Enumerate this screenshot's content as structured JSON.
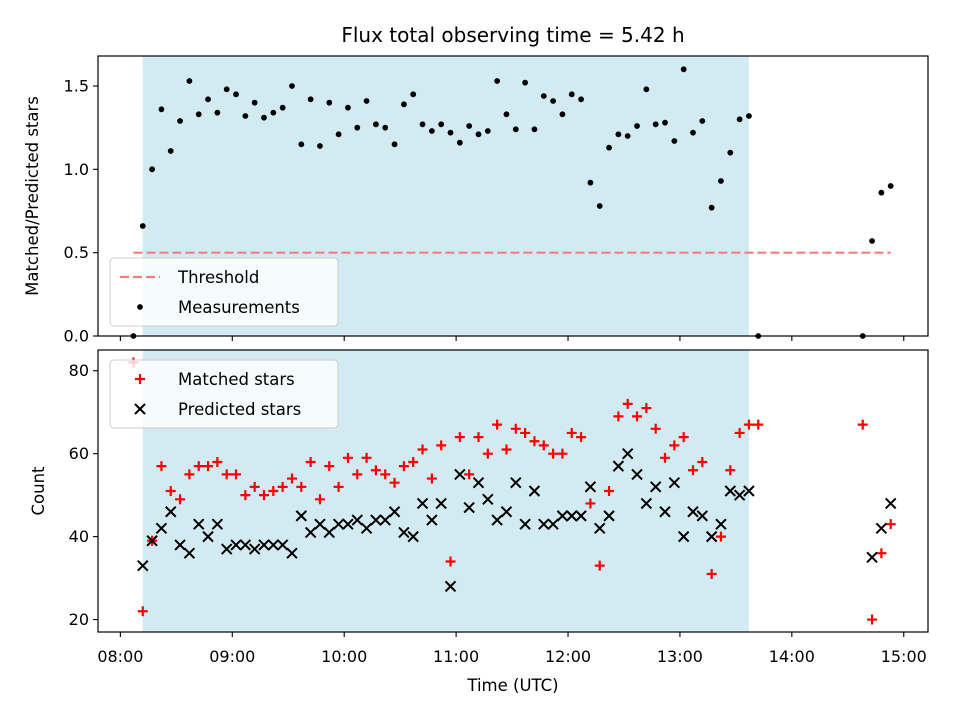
{
  "chart_data": {
    "title": "Flux total observing time = 5.42 h",
    "shared_x": {
      "xlabel": "Time (UTC)",
      "xlim": [
        "07:48",
        "15:13"
      ],
      "ticks": [
        "08:00",
        "09:00",
        "10:00",
        "11:00",
        "12:00",
        "13:00",
        "14:00",
        "15:00"
      ]
    },
    "observing_window": {
      "start": "08:12",
      "end": "13:37",
      "color": "#add8e6"
    },
    "charts": [
      {
        "type": "scatter",
        "ylabel": "Matched/Predicted stars",
        "ylim": [
          0,
          1.68
        ],
        "yticks": [
          "0.0",
          "0.5",
          "1.0",
          "1.5"
        ],
        "legend": {
          "position": "lower-left",
          "entries": [
            "Threshold",
            "Measurements"
          ]
        },
        "threshold": {
          "name": "Threshold",
          "value": 0.5,
          "x_start": "08:07",
          "x_end": "14:53",
          "color": "#f08080"
        },
        "series": [
          {
            "name": "Measurements",
            "color": "#000000",
            "points": [
              [
                "08:07",
                0.0
              ],
              [
                "08:12",
                0.66
              ],
              [
                "08:17",
                1.0
              ],
              [
                "08:22",
                1.36
              ],
              [
                "08:27",
                1.11
              ],
              [
                "08:32",
                1.29
              ],
              [
                "08:37",
                1.53
              ],
              [
                "08:42",
                1.33
              ],
              [
                "08:47",
                1.42
              ],
              [
                "08:52",
                1.34
              ],
              [
                "08:57",
                1.48
              ],
              [
                "09:02",
                1.45
              ],
              [
                "09:07",
                1.32
              ],
              [
                "09:12",
                1.4
              ],
              [
                "09:17",
                1.31
              ],
              [
                "09:22",
                1.34
              ],
              [
                "09:27",
                1.37
              ],
              [
                "09:32",
                1.5
              ],
              [
                "09:37",
                1.15
              ],
              [
                "09:42",
                1.42
              ],
              [
                "09:47",
                1.14
              ],
              [
                "09:52",
                1.4
              ],
              [
                "09:57",
                1.21
              ],
              [
                "10:02",
                1.37
              ],
              [
                "10:07",
                1.25
              ],
              [
                "10:12",
                1.41
              ],
              [
                "10:17",
                1.27
              ],
              [
                "10:22",
                1.25
              ],
              [
                "10:27",
                1.15
              ],
              [
                "10:32",
                1.39
              ],
              [
                "10:37",
                1.45
              ],
              [
                "10:42",
                1.27
              ],
              [
                "10:47",
                1.23
              ],
              [
                "10:52",
                1.27
              ],
              [
                "10:57",
                1.22
              ],
              [
                "11:02",
                1.16
              ],
              [
                "11:07",
                1.26
              ],
              [
                "11:12",
                1.21
              ],
              [
                "11:17",
                1.23
              ],
              [
                "11:22",
                1.53
              ],
              [
                "11:27",
                1.33
              ],
              [
                "11:32",
                1.24
              ],
              [
                "11:37",
                1.52
              ],
              [
                "11:42",
                1.24
              ],
              [
                "11:47",
                1.44
              ],
              [
                "11:52",
                1.41
              ],
              [
                "11:57",
                1.33
              ],
              [
                "12:02",
                1.45
              ],
              [
                "12:07",
                1.42
              ],
              [
                "12:12",
                0.92
              ],
              [
                "12:17",
                0.78
              ],
              [
                "12:22",
                1.13
              ],
              [
                "12:27",
                1.21
              ],
              [
                "12:32",
                1.2
              ],
              [
                "12:37",
                1.26
              ],
              [
                "12:42",
                1.48
              ],
              [
                "12:47",
                1.27
              ],
              [
                "12:52",
                1.28
              ],
              [
                "12:57",
                1.17
              ],
              [
                "13:02",
                1.6
              ],
              [
                "13:07",
                1.22
              ],
              [
                "13:12",
                1.29
              ],
              [
                "13:17",
                0.77
              ],
              [
                "13:22",
                0.93
              ],
              [
                "13:27",
                1.1
              ],
              [
                "13:32",
                1.3
              ],
              [
                "13:37",
                1.32
              ],
              [
                "13:42",
                0.0
              ],
              [
                "14:38",
                0.0
              ],
              [
                "14:43",
                0.57
              ],
              [
                "14:48",
                0.86
              ],
              [
                "14:53",
                0.9
              ]
            ]
          }
        ]
      },
      {
        "type": "scatter",
        "ylabel": "Count",
        "ylim": [
          17,
          85
        ],
        "yticks": [
          "20",
          "40",
          "60",
          "80"
        ],
        "legend": {
          "position": "upper-left",
          "entries": [
            "Matched stars",
            "Predicted stars"
          ]
        },
        "series": [
          {
            "name": "Matched stars",
            "color": "#ff0000",
            "marker": "plus",
            "points": [
              [
                "08:07",
                82
              ],
              [
                "08:12",
                22
              ],
              [
                "08:17",
                39
              ],
              [
                "08:22",
                57
              ],
              [
                "08:27",
                51
              ],
              [
                "08:32",
                49
              ],
              [
                "08:37",
                55
              ],
              [
                "08:42",
                57
              ],
              [
                "08:47",
                57
              ],
              [
                "08:52",
                58
              ],
              [
                "08:57",
                55
              ],
              [
                "09:02",
                55
              ],
              [
                "09:07",
                50
              ],
              [
                "09:12",
                52
              ],
              [
                "09:17",
                50
              ],
              [
                "09:22",
                51
              ],
              [
                "09:27",
                52
              ],
              [
                "09:32",
                54
              ],
              [
                "09:37",
                52
              ],
              [
                "09:42",
                58
              ],
              [
                "09:47",
                49
              ],
              [
                "09:52",
                57
              ],
              [
                "09:57",
                52
              ],
              [
                "10:02",
                59
              ],
              [
                "10:07",
                55
              ],
              [
                "10:12",
                59
              ],
              [
                "10:17",
                56
              ],
              [
                "10:22",
                55
              ],
              [
                "10:27",
                53
              ],
              [
                "10:32",
                57
              ],
              [
                "10:37",
                58
              ],
              [
                "10:42",
                61
              ],
              [
                "10:47",
                54
              ],
              [
                "10:52",
                62
              ],
              [
                "10:57",
                34
              ],
              [
                "11:02",
                64
              ],
              [
                "11:07",
                55
              ],
              [
                "11:12",
                64
              ],
              [
                "11:17",
                60
              ],
              [
                "11:22",
                67
              ],
              [
                "11:27",
                61
              ],
              [
                "11:32",
                66
              ],
              [
                "11:37",
                65
              ],
              [
                "11:42",
                63
              ],
              [
                "11:47",
                62
              ],
              [
                "11:52",
                60
              ],
              [
                "11:57",
                60
              ],
              [
                "12:02",
                65
              ],
              [
                "12:07",
                64
              ],
              [
                "12:12",
                48
              ],
              [
                "12:17",
                33
              ],
              [
                "12:22",
                51
              ],
              [
                "12:27",
                69
              ],
              [
                "12:32",
                72
              ],
              [
                "12:37",
                69
              ],
              [
                "12:42",
                71
              ],
              [
                "12:47",
                66
              ],
              [
                "12:52",
                59
              ],
              [
                "12:57",
                62
              ],
              [
                "13:02",
                64
              ],
              [
                "13:07",
                56
              ],
              [
                "13:12",
                58
              ],
              [
                "13:17",
                31
              ],
              [
                "13:22",
                40
              ],
              [
                "13:27",
                56
              ],
              [
                "13:32",
                65
              ],
              [
                "13:37",
                67
              ],
              [
                "13:42",
                67
              ],
              [
                "14:38",
                67
              ],
              [
                "14:43",
                20
              ],
              [
                "14:48",
                36
              ],
              [
                "14:53",
                43
              ]
            ]
          },
          {
            "name": "Predicted stars",
            "color": "#000000",
            "marker": "x",
            "points": [
              [
                "08:12",
                33
              ],
              [
                "08:17",
                39
              ],
              [
                "08:22",
                42
              ],
              [
                "08:27",
                46
              ],
              [
                "08:32",
                38
              ],
              [
                "08:37",
                36
              ],
              [
                "08:42",
                43
              ],
              [
                "08:47",
                40
              ],
              [
                "08:52",
                43
              ],
              [
                "08:57",
                37
              ],
              [
                "09:02",
                38
              ],
              [
                "09:07",
                38
              ],
              [
                "09:12",
                37
              ],
              [
                "09:17",
                38
              ],
              [
                "09:22",
                38
              ],
              [
                "09:27",
                38
              ],
              [
                "09:32",
                36
              ],
              [
                "09:37",
                45
              ],
              [
                "09:42",
                41
              ],
              [
                "09:47",
                43
              ],
              [
                "09:52",
                41
              ],
              [
                "09:57",
                43
              ],
              [
                "10:02",
                43
              ],
              [
                "10:07",
                44
              ],
              [
                "10:12",
                42
              ],
              [
                "10:17",
                44
              ],
              [
                "10:22",
                44
              ],
              [
                "10:27",
                46
              ],
              [
                "10:32",
                41
              ],
              [
                "10:37",
                40
              ],
              [
                "10:42",
                48
              ],
              [
                "10:47",
                44
              ],
              [
                "10:52",
                48
              ],
              [
                "10:57",
                28
              ],
              [
                "11:02",
                55
              ],
              [
                "11:07",
                47
              ],
              [
                "11:12",
                53
              ],
              [
                "11:17",
                49
              ],
              [
                "11:22",
                44
              ],
              [
                "11:27",
                46
              ],
              [
                "11:32",
                53
              ],
              [
                "11:37",
                43
              ],
              [
                "11:42",
                51
              ],
              [
                "11:47",
                43
              ],
              [
                "11:52",
                43
              ],
              [
                "11:57",
                45
              ],
              [
                "12:02",
                45
              ],
              [
                "12:07",
                45
              ],
              [
                "12:12",
                52
              ],
              [
                "12:17",
                42
              ],
              [
                "12:22",
                45
              ],
              [
                "12:27",
                57
              ],
              [
                "12:32",
                60
              ],
              [
                "12:37",
                55
              ],
              [
                "12:42",
                48
              ],
              [
                "12:47",
                52
              ],
              [
                "12:52",
                46
              ],
              [
                "12:57",
                53
              ],
              [
                "13:02",
                40
              ],
              [
                "13:07",
                46
              ],
              [
                "13:12",
                45
              ],
              [
                "13:17",
                40
              ],
              [
                "13:22",
                43
              ],
              [
                "13:27",
                51
              ],
              [
                "13:32",
                50
              ],
              [
                "13:37",
                51
              ],
              [
                "14:43",
                35
              ],
              [
                "14:48",
                42
              ],
              [
                "14:53",
                48
              ]
            ]
          }
        ]
      }
    ]
  }
}
